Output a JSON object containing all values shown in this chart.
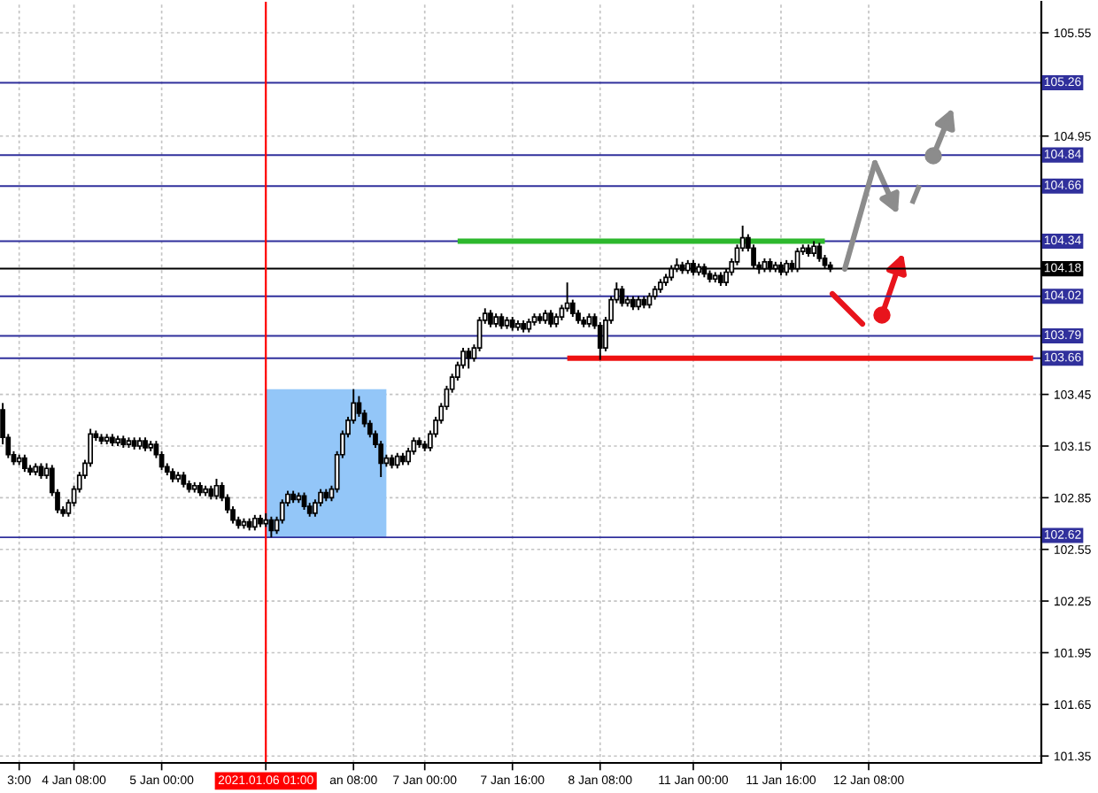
{
  "chart_data": {
    "type": "candlestick",
    "color": "#000000",
    "categories": [
      null,
      null,
      null,
      "3:00",
      null,
      null,
      null,
      null,
      null,
      null,
      null,
      null,
      null,
      "4 Jan 08:00",
      null,
      null,
      null,
      null,
      null,
      null,
      null,
      null,
      null,
      null,
      null,
      null,
      null,
      null,
      null,
      "5 Jan 00:00",
      null,
      null,
      null,
      null,
      null,
      null,
      null,
      null,
      null,
      null,
      null,
      null,
      null,
      null,
      null,
      null,
      null,
      null,
      "2021.01.06 01:00",
      null,
      null,
      null,
      null,
      null,
      null,
      null,
      null,
      null,
      null,
      null,
      null,
      null,
      null,
      null,
      "an 08:00",
      null,
      null,
      null,
      null,
      null,
      null,
      null,
      null,
      null,
      null,
      null,
      null,
      "7 Jan 00:00",
      null,
      null,
      null,
      null,
      null,
      null,
      null,
      null,
      null,
      null,
      null,
      null,
      null,
      null,
      null,
      "7 Jan 16:00",
      null,
      null,
      null,
      null,
      null,
      null,
      null,
      null,
      null,
      null,
      null,
      null,
      null,
      null,
      null,
      "8 Jan 08:00",
      null,
      null,
      null,
      null,
      null,
      null,
      null,
      null,
      null,
      null,
      null,
      null,
      null,
      null,
      null,
      null,
      "11 Jan 00:00",
      null,
      null,
      null,
      null,
      null,
      null,
      null,
      null,
      null,
      null,
      null,
      null,
      null,
      null,
      null,
      "11 Jan 16:00",
      null,
      null,
      null,
      null,
      null,
      null,
      null,
      null,
      null,
      null,
      null,
      null,
      null,
      null,
      null,
      "12 Jan 08:00",
      null,
      null,
      null,
      null,
      null,
      null,
      null,
      null,
      null,
      null,
      null,
      null,
      null,
      null,
      null,
      null,
      null,
      null,
      null,
      null,
      null,
      null,
      null,
      null,
      null,
      null,
      null,
      null,
      null,
      null,
      null
    ],
    "ohlc": [
      [
        103.36,
        103.4,
        103.16,
        103.2
      ],
      [
        103.2,
        103.22,
        103.08,
        103.1
      ],
      [
        103.1,
        103.12,
        103.04,
        103.06
      ],
      [
        103.06,
        103.1,
        103.04,
        103.08
      ],
      [
        103.08,
        103.1,
        103.0,
        103.02
      ],
      [
        103.02,
        103.04,
        102.98,
        103.0
      ],
      [
        103.0,
        103.05,
        102.98,
        103.03
      ],
      [
        103.03,
        103.05,
        102.96,
        102.98
      ],
      [
        102.98,
        103.05,
        102.96,
        103.02
      ],
      [
        103.02,
        103.04,
        102.86,
        102.88
      ],
      [
        102.88,
        102.9,
        102.76,
        102.78
      ],
      [
        102.78,
        102.8,
        102.74,
        102.76
      ],
      [
        102.76,
        102.84,
        102.74,
        102.82
      ],
      [
        102.82,
        102.92,
        102.8,
        102.9
      ],
      [
        102.9,
        103.0,
        102.88,
        102.98
      ],
      [
        102.98,
        103.07,
        102.96,
        103.05
      ],
      [
        103.05,
        103.25,
        103.03,
        103.22
      ],
      [
        103.22,
        103.24,
        103.18,
        103.2
      ],
      [
        103.2,
        103.22,
        103.16,
        103.18
      ],
      [
        103.18,
        103.22,
        103.16,
        103.2
      ],
      [
        103.2,
        103.22,
        103.15,
        103.17
      ],
      [
        103.17,
        103.21,
        103.15,
        103.19
      ],
      [
        103.19,
        103.21,
        103.14,
        103.16
      ],
      [
        103.16,
        103.2,
        103.14,
        103.18
      ],
      [
        103.18,
        103.2,
        103.13,
        103.15
      ],
      [
        103.15,
        103.2,
        103.13,
        103.18
      ],
      [
        103.18,
        103.2,
        103.12,
        103.14
      ],
      [
        103.14,
        103.18,
        103.12,
        103.16
      ],
      [
        103.16,
        103.18,
        103.08,
        103.1
      ],
      [
        103.1,
        103.12,
        103.01,
        103.03
      ],
      [
        103.03,
        103.05,
        102.98,
        103.0
      ],
      [
        103.0,
        103.02,
        102.94,
        102.96
      ],
      [
        102.96,
        103.0,
        102.94,
        102.98
      ],
      [
        102.98,
        103.0,
        102.91,
        102.93
      ],
      [
        102.93,
        102.95,
        102.88,
        102.9
      ],
      [
        102.9,
        102.94,
        102.88,
        102.92
      ],
      [
        102.92,
        102.94,
        102.86,
        102.88
      ],
      [
        102.88,
        102.92,
        102.86,
        102.9
      ],
      [
        102.9,
        102.92,
        102.84,
        102.86
      ],
      [
        102.86,
        102.96,
        102.84,
        102.92
      ],
      [
        102.92,
        102.94,
        102.83,
        102.85
      ],
      [
        102.85,
        102.87,
        102.76,
        102.78
      ],
      [
        102.78,
        102.8,
        102.7,
        102.72
      ],
      [
        102.72,
        102.74,
        102.67,
        102.69
      ],
      [
        102.69,
        102.73,
        102.67,
        102.71
      ],
      [
        102.71,
        102.73,
        102.66,
        102.68
      ],
      [
        102.68,
        102.75,
        102.66,
        102.73
      ],
      [
        102.73,
        102.75,
        102.68,
        102.7
      ],
      [
        102.7,
        102.76,
        102.68,
        102.72
      ],
      [
        102.72,
        102.74,
        102.62,
        102.66
      ],
      [
        102.66,
        102.74,
        102.64,
        102.72
      ],
      [
        102.72,
        102.84,
        102.7,
        102.82
      ],
      [
        102.82,
        102.89,
        102.8,
        102.87
      ],
      [
        102.87,
        102.89,
        102.82,
        102.84
      ],
      [
        102.84,
        102.88,
        102.82,
        102.86
      ],
      [
        102.86,
        102.88,
        102.78,
        102.8
      ],
      [
        102.8,
        102.82,
        102.74,
        102.76
      ],
      [
        102.76,
        102.84,
        102.74,
        102.82
      ],
      [
        102.82,
        102.9,
        102.8,
        102.88
      ],
      [
        102.88,
        102.9,
        102.83,
        102.85
      ],
      [
        102.85,
        102.92,
        102.83,
        102.9
      ],
      [
        102.9,
        103.12,
        102.88,
        103.1
      ],
      [
        103.1,
        103.24,
        103.08,
        103.22
      ],
      [
        103.22,
        103.32,
        103.2,
        103.3
      ],
      [
        103.3,
        103.48,
        103.28,
        103.4
      ],
      [
        103.4,
        103.44,
        103.32,
        103.34
      ],
      [
        103.34,
        103.36,
        103.26,
        103.28
      ],
      [
        103.28,
        103.3,
        103.2,
        103.22
      ],
      [
        103.22,
        103.24,
        103.14,
        103.16
      ],
      [
        103.16,
        103.18,
        102.97,
        103.05
      ],
      [
        103.05,
        103.1,
        103.03,
        103.08
      ],
      [
        103.08,
        103.1,
        103.02,
        103.04
      ],
      [
        103.04,
        103.11,
        103.02,
        103.09
      ],
      [
        103.09,
        103.11,
        103.04,
        103.06
      ],
      [
        103.06,
        103.14,
        103.04,
        103.12
      ],
      [
        103.12,
        103.2,
        103.1,
        103.18
      ],
      [
        103.18,
        103.2,
        103.14,
        103.16
      ],
      [
        103.16,
        103.18,
        103.12,
        103.14
      ],
      [
        103.14,
        103.24,
        103.12,
        103.22
      ],
      [
        103.22,
        103.32,
        103.2,
        103.3
      ],
      [
        103.3,
        103.4,
        103.28,
        103.38
      ],
      [
        103.38,
        103.5,
        103.36,
        103.48
      ],
      [
        103.48,
        103.57,
        103.46,
        103.55
      ],
      [
        103.55,
        103.64,
        103.53,
        103.62
      ],
      [
        103.62,
        103.72,
        103.6,
        103.7
      ],
      [
        103.7,
        103.72,
        103.6,
        103.66
      ],
      [
        103.66,
        103.74,
        103.64,
        103.72
      ],
      [
        103.72,
        103.9,
        103.7,
        103.88
      ],
      [
        103.88,
        103.95,
        103.86,
        103.92
      ],
      [
        103.92,
        103.94,
        103.84,
        103.86
      ],
      [
        103.86,
        103.92,
        103.84,
        103.9
      ],
      [
        103.9,
        103.92,
        103.83,
        103.85
      ],
      [
        103.85,
        103.9,
        103.83,
        103.88
      ],
      [
        103.88,
        103.9,
        103.82,
        103.84
      ],
      [
        103.84,
        103.88,
        103.82,
        103.86
      ],
      [
        103.86,
        103.88,
        103.81,
        103.83
      ],
      [
        103.83,
        103.89,
        103.81,
        103.87
      ],
      [
        103.87,
        103.92,
        103.85,
        103.9
      ],
      [
        103.9,
        103.92,
        103.86,
        103.88
      ],
      [
        103.88,
        103.94,
        103.86,
        103.92
      ],
      [
        103.92,
        103.94,
        103.84,
        103.86
      ],
      [
        103.86,
        103.92,
        103.84,
        103.9
      ],
      [
        103.9,
        103.97,
        103.88,
        103.95
      ],
      [
        103.95,
        104.1,
        103.93,
        103.98
      ],
      [
        103.98,
        104.0,
        103.9,
        103.92
      ],
      [
        103.92,
        103.94,
        103.86,
        103.88
      ],
      [
        103.88,
        103.9,
        103.84,
        103.86
      ],
      [
        103.86,
        103.92,
        103.84,
        103.9
      ],
      [
        103.9,
        103.92,
        103.83,
        103.85
      ],
      [
        103.85,
        103.87,
        103.65,
        103.72
      ],
      [
        103.72,
        103.9,
        103.7,
        103.88
      ],
      [
        103.88,
        104.02,
        103.86,
        104.0
      ],
      [
        104.0,
        104.1,
        103.98,
        104.06
      ],
      [
        104.06,
        104.08,
        103.96,
        103.98
      ],
      [
        103.98,
        104.02,
        103.96,
        104.0
      ],
      [
        104.0,
        104.02,
        103.94,
        103.96
      ],
      [
        103.96,
        104.02,
        103.94,
        104.0
      ],
      [
        104.0,
        104.02,
        103.95,
        103.97
      ],
      [
        103.97,
        104.04,
        103.95,
        104.02
      ],
      [
        104.02,
        104.08,
        104.0,
        104.06
      ],
      [
        104.06,
        104.12,
        104.04,
        104.1
      ],
      [
        104.1,
        104.15,
        104.08,
        104.13
      ],
      [
        104.13,
        104.2,
        104.11,
        104.18
      ],
      [
        104.18,
        104.24,
        104.16,
        104.2
      ],
      [
        104.2,
        104.22,
        104.15,
        104.17
      ],
      [
        104.17,
        104.23,
        104.15,
        104.21
      ],
      [
        104.21,
        104.23,
        104.14,
        104.16
      ],
      [
        104.16,
        104.21,
        104.14,
        104.19
      ],
      [
        104.19,
        104.21,
        104.13,
        104.15
      ],
      [
        104.15,
        104.17,
        104.1,
        104.12
      ],
      [
        104.12,
        104.16,
        104.1,
        104.14
      ],
      [
        104.14,
        104.16,
        104.08,
        104.1
      ],
      [
        104.1,
        104.18,
        104.08,
        104.16
      ],
      [
        104.16,
        104.24,
        104.14,
        104.22
      ],
      [
        104.22,
        104.32,
        104.2,
        104.3
      ],
      [
        104.3,
        104.43,
        104.28,
        104.36
      ],
      [
        104.36,
        104.38,
        104.28,
        104.3
      ],
      [
        104.3,
        104.32,
        104.18,
        104.2
      ],
      [
        104.2,
        104.22,
        104.15,
        104.18
      ],
      [
        104.18,
        104.24,
        104.16,
        104.22
      ],
      [
        104.22,
        104.24,
        104.16,
        104.18
      ],
      [
        104.18,
        104.22,
        104.16,
        104.2
      ],
      [
        104.2,
        104.22,
        104.14,
        104.16
      ],
      [
        104.16,
        104.23,
        104.14,
        104.21
      ],
      [
        104.21,
        104.23,
        104.16,
        104.18
      ],
      [
        104.18,
        104.3,
        104.16,
        104.28
      ],
      [
        104.28,
        104.32,
        104.26,
        104.3
      ],
      [
        104.3,
        104.32,
        104.25,
        104.27
      ],
      [
        104.27,
        104.34,
        104.25,
        104.31
      ],
      [
        104.31,
        104.33,
        104.22,
        104.24
      ],
      [
        104.24,
        104.26,
        104.18,
        104.2
      ],
      [
        104.2,
        104.22,
        104.16,
        104.18
      ],
      null,
      null,
      null,
      null,
      null,
      null,
      null,
      null,
      null,
      null,
      null,
      null,
      null,
      null,
      null,
      null,
      null,
      null,
      null,
      null,
      null,
      null,
      null,
      null,
      null,
      null,
      null,
      null,
      null,
      null,
      null,
      null,
      null,
      null,
      null,
      null,
      null,
      null
    ],
    "series": [
      {
        "type": "line",
        "color": "#2db82d",
        "values": [
          null,
          null,
          null,
          null,
          null,
          null,
          null,
          null,
          null,
          null,
          null,
          null,
          null,
          null,
          null,
          null,
          null,
          null,
          null,
          null,
          null,
          null,
          null,
          null,
          null,
          null,
          null,
          null,
          null,
          null,
          null,
          null,
          null,
          null,
          null,
          null,
          null,
          null,
          null,
          null,
          null,
          null,
          null,
          null,
          null,
          null,
          null,
          null,
          null,
          null,
          null,
          null,
          null,
          null,
          null,
          null,
          null,
          null,
          null,
          null,
          null,
          null,
          null,
          null,
          null,
          null,
          null,
          null,
          null,
          null,
          null,
          null,
          null,
          null,
          null,
          null,
          null,
          null,
          null,
          null,
          null,
          null,
          null,
          104.34,
          null,
          null,
          null,
          null,
          null,
          null,
          null,
          null,
          null,
          null,
          null,
          null,
          null,
          null,
          null,
          null,
          null,
          null,
          null,
          null,
          null,
          null,
          null,
          null,
          null,
          null,
          null,
          null,
          null,
          null,
          null,
          null,
          null,
          null,
          null,
          null,
          null,
          null,
          null,
          null,
          null,
          null,
          null,
          null,
          null,
          null,
          null,
          null,
          null,
          null,
          null,
          null,
          null,
          null,
          null,
          null,
          null,
          null,
          null,
          null,
          null,
          null,
          null,
          null,
          null,
          null,
          104.34,
          null,
          null,
          null,
          null,
          null,
          null,
          null,
          null,
          null,
          null,
          null,
          null,
          null,
          null,
          null,
          null,
          null,
          null,
          null,
          null,
          null,
          null,
          null,
          null,
          null,
          null,
          null,
          null,
          null,
          null,
          null,
          null,
          null,
          null,
          null,
          null,
          null,
          null,
          null
        ]
      },
      {
        "type": "line",
        "color": "#ee1111",
        "values": [
          null,
          null,
          null,
          null,
          null,
          null,
          null,
          null,
          null,
          null,
          null,
          null,
          null,
          null,
          null,
          null,
          null,
          null,
          null,
          null,
          null,
          null,
          null,
          null,
          null,
          null,
          null,
          null,
          null,
          null,
          null,
          null,
          null,
          null,
          null,
          null,
          null,
          null,
          null,
          null,
          null,
          null,
          null,
          null,
          null,
          null,
          null,
          null,
          null,
          null,
          null,
          null,
          null,
          null,
          null,
          null,
          null,
          null,
          null,
          null,
          null,
          null,
          null,
          null,
          null,
          null,
          null,
          null,
          null,
          null,
          null,
          null,
          null,
          null,
          null,
          null,
          null,
          null,
          null,
          null,
          null,
          null,
          null,
          null,
          null,
          null,
          null,
          null,
          null,
          null,
          null,
          null,
          null,
          null,
          null,
          null,
          null,
          null,
          null,
          null,
          null,
          null,
          null,
          103.66,
          null,
          null,
          null,
          null,
          null,
          null,
          null,
          null,
          null,
          null,
          null,
          null,
          null,
          null,
          null,
          null,
          null,
          null,
          null,
          null,
          null,
          null,
          null,
          null,
          null,
          null,
          null,
          null,
          null,
          null,
          null,
          null,
          null,
          null,
          null,
          null,
          null,
          null,
          null,
          null,
          null,
          null,
          null,
          null,
          null,
          null,
          null,
          null,
          null,
          null,
          null,
          null,
          null,
          null,
          null,
          null,
          null,
          null,
          null,
          null,
          null,
          null,
          null,
          null,
          null,
          null,
          null,
          null,
          null,
          null,
          null,
          null,
          null,
          null,
          null,
          null,
          null,
          null,
          null,
          null,
          null,
          null,
          null,
          null,
          103.66,
          null
        ]
      },
      {
        "type": "area",
        "color": "#93c6f8",
        "values": [
          null,
          null,
          null,
          null,
          null,
          null,
          null,
          null,
          null,
          null,
          null,
          null,
          null,
          null,
          null,
          null,
          null,
          null,
          null,
          null,
          null,
          null,
          null,
          null,
          null,
          null,
          null,
          null,
          null,
          null,
          null,
          null,
          null,
          null,
          null,
          null,
          null,
          null,
          null,
          null,
          null,
          null,
          null,
          null,
          null,
          null,
          null,
          null,
          null,
          null,
          null,
          null,
          null,
          null,
          null,
          null,
          null,
          null,
          null,
          null,
          null,
          null,
          null,
          null,
          null,
          null,
          null,
          null,
          null,
          null,
          null,
          null,
          null,
          null,
          null,
          null,
          null,
          null,
          null,
          null,
          null,
          null,
          null,
          null,
          null,
          null,
          null,
          null,
          null,
          null,
          null,
          null,
          null,
          null,
          null,
          null,
          null,
          null,
          null,
          null,
          null,
          null,
          null,
          null,
          null,
          null,
          null,
          null,
          null,
          null,
          null,
          null,
          null,
          null,
          null,
          null,
          null,
          null,
          null,
          null,
          null,
          null,
          null,
          null,
          null,
          null,
          null,
          null,
          null,
          null,
          null,
          null,
          null,
          null,
          null,
          null,
          null,
          null,
          null,
          null,
          null,
          null,
          null,
          null,
          null,
          null,
          null,
          null,
          null,
          null,
          null,
          null,
          null,
          null,
          null,
          null,
          null,
          null,
          null,
          null,
          null,
          null,
          null,
          null,
          null,
          null,
          null,
          null,
          null,
          null,
          null,
          null,
          null,
          null,
          null,
          null,
          null,
          null,
          null,
          null,
          null,
          null,
          null,
          null,
          null,
          null,
          null,
          null,
          null,
          null
        ],
        "lower": [
          null,
          null,
          null,
          null,
          null,
          null,
          null,
          null,
          null,
          null,
          null,
          null,
          null,
          null,
          null,
          null,
          null,
          null,
          null,
          null,
          null,
          null,
          null,
          null,
          null,
          null,
          null,
          null,
          null,
          null,
          null,
          null,
          null,
          null,
          null,
          null,
          null,
          null,
          null,
          null,
          null,
          null,
          null,
          null,
          null,
          null,
          null,
          null,
          102.62,
          102.62,
          102.62,
          102.62,
          102.62,
          102.62,
          102.62,
          102.62,
          102.62,
          102.62,
          102.62,
          102.62,
          102.62,
          102.62,
          102.62,
          102.62,
          102.62,
          102.62,
          102.62,
          102.62,
          102.62,
          102.62,
          102.62,
          null,
          null,
          null,
          null,
          null,
          null,
          null,
          null,
          null,
          null,
          null,
          null,
          null,
          null,
          null,
          null,
          null,
          null,
          null,
          null,
          null,
          null,
          null,
          null,
          null,
          null,
          null,
          null,
          null,
          null,
          null,
          null,
          null,
          null,
          null,
          null,
          null,
          null,
          null,
          null,
          null,
          null,
          null,
          null,
          null,
          null,
          null,
          null,
          null,
          null,
          null,
          null,
          null,
          null,
          null,
          null,
          null,
          null,
          null,
          null,
          null,
          null,
          null,
          null,
          null,
          null,
          null,
          null,
          null,
          null,
          null,
          null,
          null,
          null,
          null,
          null,
          null,
          null,
          null,
          null,
          null,
          null,
          null,
          null,
          null,
          null,
          null,
          null,
          null,
          null,
          null,
          null,
          null,
          null,
          null,
          null,
          null,
          null,
          null,
          null,
          null,
          null,
          null,
          null,
          null,
          null,
          null,
          null,
          null,
          null,
          null,
          null,
          null,
          null,
          null,
          null,
          null,
          null,
          null
        ],
        "upper": [
          null,
          null,
          null,
          null,
          null,
          null,
          null,
          null,
          null,
          null,
          null,
          null,
          null,
          null,
          null,
          null,
          null,
          null,
          null,
          null,
          null,
          null,
          null,
          null,
          null,
          null,
          null,
          null,
          null,
          null,
          null,
          null,
          null,
          null,
          null,
          null,
          null,
          null,
          null,
          null,
          null,
          null,
          null,
          null,
          null,
          null,
          null,
          null,
          103.48,
          103.48,
          103.48,
          103.48,
          103.48,
          103.48,
          103.48,
          103.48,
          103.48,
          103.48,
          103.48,
          103.48,
          103.48,
          103.48,
          103.48,
          103.48,
          103.48,
          103.48,
          103.48,
          103.48,
          103.48,
          103.48,
          103.48,
          null,
          null,
          null,
          null,
          null,
          null,
          null,
          null,
          null,
          null,
          null,
          null,
          null,
          null,
          null,
          null,
          null,
          null,
          null,
          null,
          null,
          null,
          null,
          null,
          null,
          null,
          null,
          null,
          null,
          null,
          null,
          null,
          null,
          null,
          null,
          null,
          null,
          null,
          null,
          null,
          null,
          null,
          null,
          null,
          null,
          null,
          null,
          null,
          null,
          null,
          null,
          null,
          null,
          null,
          null,
          null,
          null,
          null,
          null,
          null,
          null,
          null,
          null,
          null,
          null,
          null,
          null,
          null,
          null,
          null,
          null,
          null,
          null,
          null,
          null,
          null,
          null,
          null,
          null,
          null,
          null,
          null,
          null,
          null,
          null,
          null,
          null,
          null,
          null,
          null,
          null,
          null,
          null,
          null,
          null,
          null,
          null,
          null,
          null,
          null,
          null,
          null,
          null,
          null,
          null,
          null,
          null,
          null,
          null,
          null,
          null,
          null,
          null,
          null,
          null,
          null,
          null,
          null,
          null
        ]
      }
    ],
    "ylim": [
      101.31,
      105.73
    ],
    "yticks": [
      105.55,
      104.95,
      103.45,
      103.15,
      102.85,
      102.55,
      102.25,
      101.95,
      101.65,
      101.35
    ],
    "grid": true,
    "ref_lines": [
      {
        "axis": "y",
        "value": 105.26,
        "label": "105.26",
        "color": "#30309c"
      },
      {
        "axis": "y",
        "value": 104.84,
        "label": "104.84",
        "color": "#30309c"
      },
      {
        "axis": "y",
        "value": 104.66,
        "label": "104.66",
        "color": "#30309c"
      },
      {
        "axis": "y",
        "value": 104.34,
        "label": "104.34",
        "color": "#30309c"
      },
      {
        "axis": "y",
        "value": 104.18,
        "label": "104.18",
        "color": "#000000"
      },
      {
        "axis": "y",
        "value": 104.02,
        "label": "104.02",
        "color": "#30309c"
      },
      {
        "axis": "y",
        "value": 103.79,
        "label": "103.79",
        "color": "#30309c"
      },
      {
        "axis": "y",
        "value": 103.66,
        "label": "103.66",
        "color": "#30309c"
      },
      {
        "axis": "y",
        "value": 102.62,
        "label": "102.62",
        "color": "#30309c"
      },
      {
        "axis": "x",
        "value": "2021.01.06 01:00",
        "color": "#ff0000"
      }
    ]
  }
}
